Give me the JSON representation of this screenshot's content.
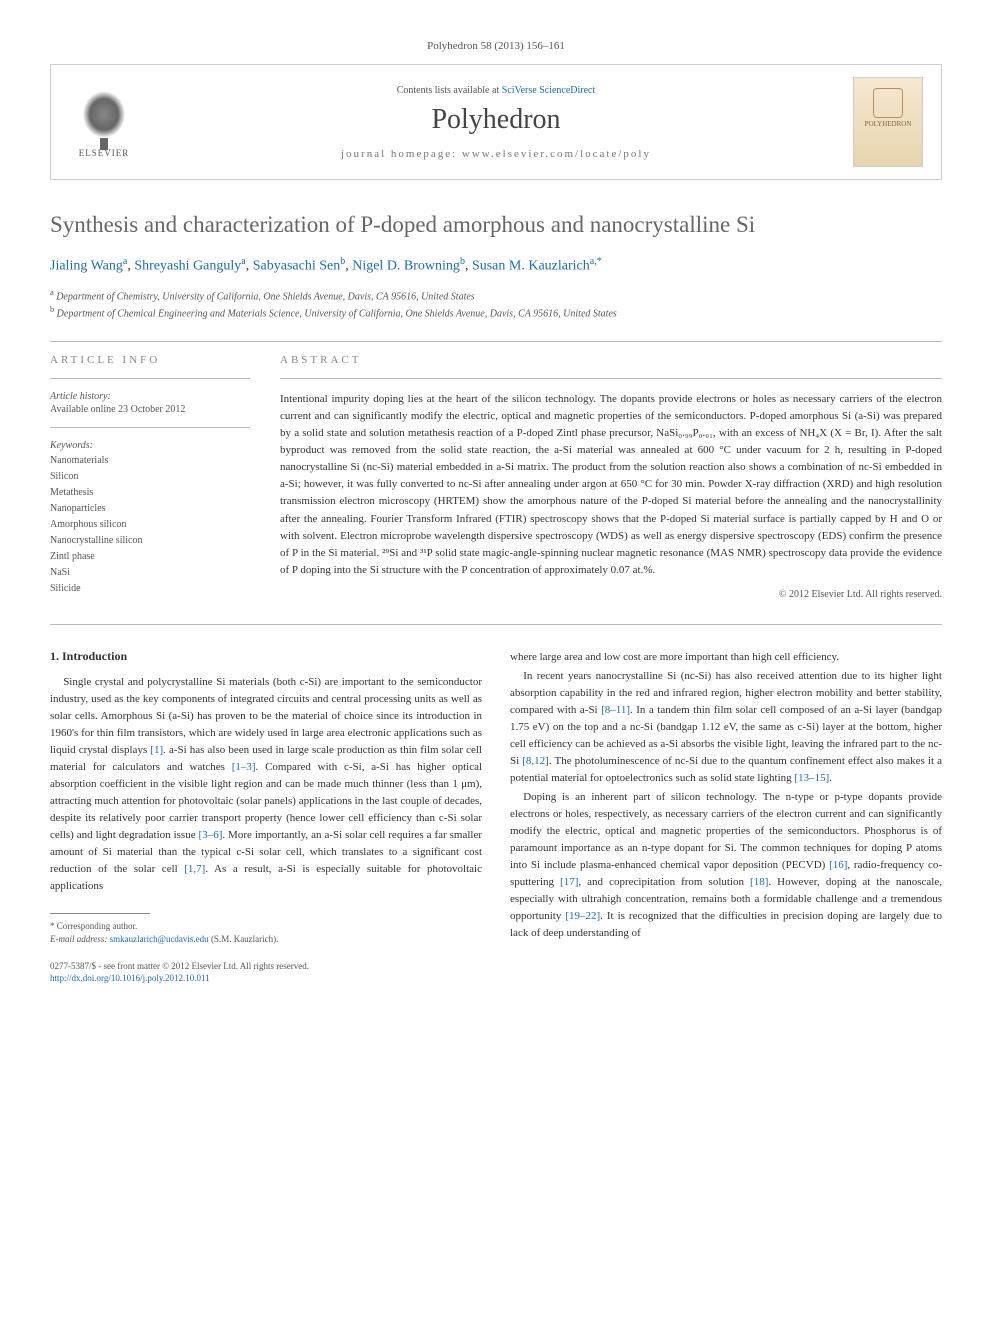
{
  "journal_ref": "Polyhedron 58 (2013) 156–161",
  "header": {
    "elsevier_label": "ELSEVIER",
    "contents_prefix": "Contents lists available at ",
    "contents_link": "SciVerse ScienceDirect",
    "journal_name": "Polyhedron",
    "homepage_prefix": "journal homepage: ",
    "homepage_url": "www.elsevier.com/locate/poly",
    "cover_label": "POLYHEDRON"
  },
  "title": "Synthesis and characterization of P-doped amorphous and nanocrystalline Si",
  "authors": [
    {
      "name": "Jialing Wang",
      "aff": "a"
    },
    {
      "name": "Shreyashi Ganguly",
      "aff": "a"
    },
    {
      "name": "Sabyasachi Sen",
      "aff": "b"
    },
    {
      "name": "Nigel D. Browning",
      "aff": "b"
    },
    {
      "name": "Susan M. Kauzlarich",
      "aff": "a,*"
    }
  ],
  "affiliations": [
    {
      "sup": "a",
      "text": "Department of Chemistry, University of California, One Shields Avenue, Davis, CA 95616, United States"
    },
    {
      "sup": "b",
      "text": "Department of Chemical Engineering and Materials Science, University of California, One Shields Avenue, Davis, CA 95616, United States"
    }
  ],
  "article_info": {
    "heading": "ARTICLE INFO",
    "history_label": "Article history:",
    "history_text": "Available online 23 October 2012",
    "keywords_label": "Keywords:",
    "keywords": [
      "Nanomaterials",
      "Silicon",
      "Metathesis",
      "Nanoparticles",
      "Amorphous silicon",
      "Nanocrystalline silicon",
      "Zintl phase",
      "NaSi",
      "Silicide"
    ]
  },
  "abstract": {
    "heading": "ABSTRACT",
    "text": "Intentional impurity doping lies at the heart of the silicon technology. The dopants provide electrons or holes as necessary carriers of the electron current and can significantly modify the electric, optical and magnetic properties of the semiconductors. P-doped amorphous Si (a-Si) was prepared by a solid state and solution metathesis reaction of a P-doped Zintl phase precursor, NaSi₀.₉₉P₀.₀₁, with an excess of NH₄X (X = Br, I). After the salt byproduct was removed from the solid state reaction, the a-Si material was annealed at 600 °C under vacuum for 2 h, resulting in P-doped nanocrystalline Si (nc-Si) material embedded in a-Si matrix. The product from the solution reaction also shows a combination of nc-Si embedded in a-Si; however, it was fully converted to nc-Si after annealing under argon at 650 °C for 30 min. Powder X-ray diffraction (XRD) and high resolution transmission electron microscopy (HRTEM) show the amorphous nature of the P-doped Si material before the annealing and the nanocrystallinity after the annealing. Fourier Transform Infrared (FTIR) spectroscopy shows that the P-doped Si material surface is partially capped by H and O or with solvent. Electron microprobe wavelength dispersive spectroscopy (WDS) as well as energy dispersive spectroscopy (EDS) confirm the presence of P in the Si material. ²⁹Si and ³¹P solid state magic-angle-spinning nuclear magnetic resonance (MAS NMR) spectroscopy data provide the evidence of P doping into the Si structure with the P concentration of approximately 0.07 at.%.",
    "copyright": "© 2012 Elsevier Ltd. All rights reserved."
  },
  "body": {
    "section_heading": "1. Introduction",
    "left_paragraphs": [
      "Single crystal and polycrystalline Si materials (both c-Si) are important to the semiconductor industry, used as the key components of integrated circuits and central processing units as well as solar cells. Amorphous Si (a-Si) has proven to be the material of choice since its introduction in 1960's for thin film transistors, which are widely used in large area electronic applications such as liquid crystal displays [1]. a-Si has also been used in large scale production as thin film solar cell material for calculators and watches [1–3]. Compared with c-Si, a-Si has higher optical absorption coefficient in the visible light region and can be made much thinner (less than 1 μm), attracting much attention for photovoltaic (solar panels) applications in the last couple of decades, despite its relatively poor carrier transport property (hence lower cell efficiency than c-Si solar cells) and light degradation issue [3–6]. More importantly, an a-Si solar cell requires a far smaller amount of Si material than the typical c-Si solar cell, which translates to a significant cost reduction of the solar cell [1,7]. As a result, a-Si is especially suitable for photovoltaic applications"
    ],
    "right_paragraphs": [
      "where large area and low cost are more important than high cell efficiency.",
      "In recent years nanocrystalline Si (nc-Si) has also received attention due to its higher light absorption capability in the red and infrared region, higher electron mobility and better stability, compared with a-Si [8–11]. In a tandem thin film solar cell composed of an a-Si layer (bandgap 1.75 eV) on the top and a nc-Si (bandgap 1.12 eV, the same as c-Si) layer at the bottom, higher cell efficiency can be achieved as a-Si absorbs the visible light, leaving the infrared part to the nc-Si [8,12]. The photoluminescence of nc-Si due to the quantum confinement effect also makes it a potential material for optoelectronics such as solid state lighting [13–15].",
      "Doping is an inherent part of silicon technology. The n-type or p-type dopants provide electrons or holes, respectively, as necessary carriers of the electron current and can significantly modify the electric, optical and magnetic properties of the semiconductors. Phosphorus is of paramount importance as an n-type dopant for Si. The common techniques for doping P atoms into Si include plasma-enhanced chemical vapor deposition (PECVD) [16], radio-frequency co-sputtering [17], and coprecipitation from solution [18]. However, doping at the nanoscale, especially with ultrahigh concentration, remains both a formidable challenge and a tremendous opportunity [19–22]. It is recognized that the difficulties in precision doping are largely due to lack of deep understanding of"
    ]
  },
  "footnote": {
    "corresponding": "* Corresponding author.",
    "email_label": "E-mail address:",
    "email": "smkauzlarich@ucdavis.edu",
    "email_who": "(S.M. Kauzlarich)."
  },
  "footer": {
    "issn_line": "0277-5387/$ - see front matter © 2012 Elsevier Ltd. All rights reserved.",
    "doi": "http://dx.doi.org/10.1016/j.poly.2012.10.011"
  },
  "colors": {
    "link": "#1a6bb8",
    "heading_grey": "#666",
    "text": "#333",
    "muted": "#555"
  }
}
